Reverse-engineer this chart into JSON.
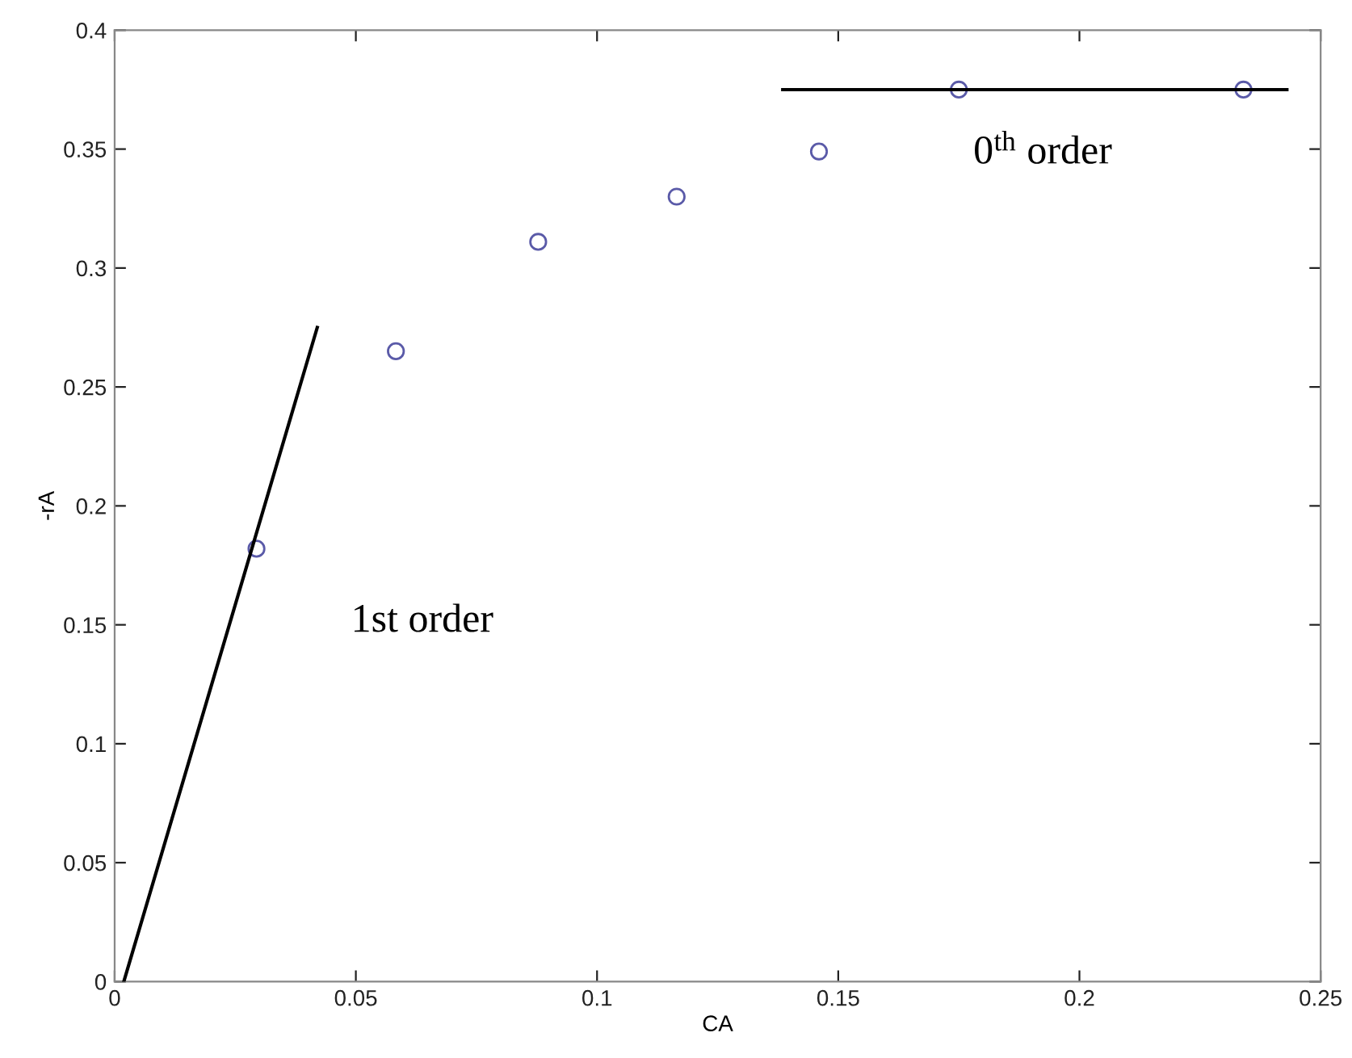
{
  "chart_data": {
    "type": "scatter",
    "xlabel": "CA",
    "ylabel": "-rA",
    "xlim": [
      0,
      0.25
    ],
    "xticks": [
      0,
      0.05,
      0.1,
      0.15,
      0.2,
      0.25
    ],
    "ylim": [
      0,
      0.4
    ],
    "yticks": [
      0,
      0.05,
      0.1,
      0.15,
      0.2,
      0.25,
      0.3,
      0.35,
      0.4
    ],
    "grid": false,
    "legend": false,
    "series": [
      {
        "marker": "circle",
        "color": "#5a5aa8",
        "x": [
          0.0294,
          0.0583,
          0.0878,
          0.1165,
          0.146,
          0.175,
          0.234
        ],
        "values": [
          0.182,
          0.265,
          0.311,
          0.33,
          0.349,
          0.375,
          0.375
        ]
      },
      {
        "type": "line",
        "marker": "none",
        "line_style": "solid",
        "color": "#000000",
        "x": [
          0.0019,
          0.042
        ],
        "values": [
          0,
          0.275
        ]
      },
      {
        "type": "line",
        "marker": "none",
        "line_style": "solid",
        "color": "#000000",
        "x": [
          0.1385,
          0.243
        ],
        "values": [
          0.375,
          0.375
        ]
      }
    ],
    "annotations": [
      "1st order",
      "0$^{th}$ order"
    ]
  }
}
